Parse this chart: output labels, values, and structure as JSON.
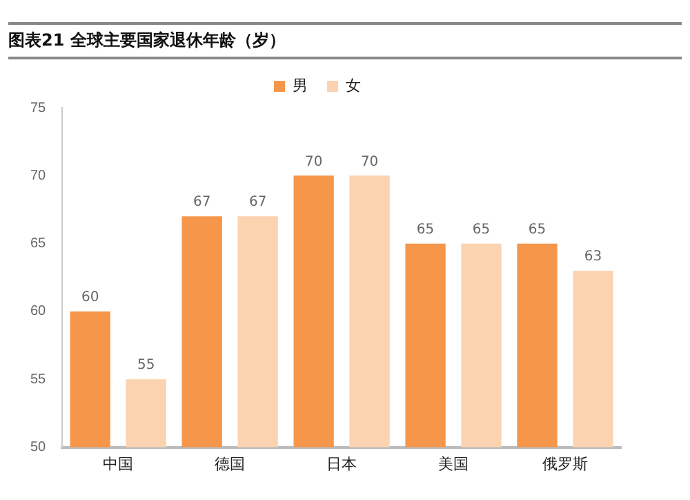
{
  "chart_data": {
    "type": "bar",
    "title": "图表21 全球主要国家退休年龄（岁）",
    "categories": [
      "中国",
      "德国",
      "日本",
      "美国",
      "俄罗斯"
    ],
    "series": [
      {
        "name": "男",
        "color": "#f5964a",
        "values": [
          60,
          67,
          70,
          65,
          65
        ]
      },
      {
        "name": "女",
        "color": "#fcd3b0",
        "values": [
          55,
          67,
          70,
          65,
          63
        ]
      }
    ],
    "ylim": [
      50,
      75
    ],
    "yticks": [
      50,
      55,
      60,
      65,
      70,
      75
    ],
    "grid": false,
    "legend": "top",
    "data_labels": true
  }
}
